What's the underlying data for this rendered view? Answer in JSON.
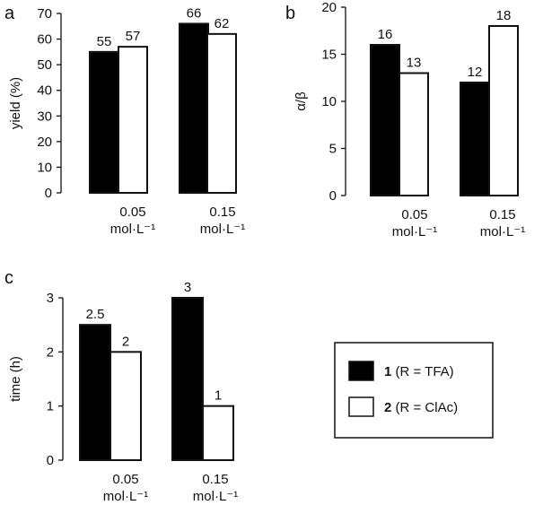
{
  "colors": {
    "series_1_fill": "#000000",
    "series_2_fill": "#ffffff",
    "axis": "#111111"
  },
  "legend": {
    "items": [
      {
        "number": "1",
        "text": " (R = TFA)",
        "swatch": "filled"
      },
      {
        "number": "2",
        "text": " (R = ClAc)",
        "swatch": "open"
      }
    ]
  },
  "chart_data": [
    {
      "panel": "a",
      "type": "bar",
      "ylabel": "yield (%)",
      "ylim": [
        0,
        70
      ],
      "yticks": [
        0,
        10,
        20,
        30,
        40,
        50,
        60,
        70
      ],
      "categories": [
        {
          "line1": "0.05",
          "line2": "mol·L⁻¹"
        },
        {
          "line1": "0.15",
          "line2": "mol·L⁻¹"
        }
      ],
      "series": [
        {
          "name": "1 (R = TFA)",
          "values": [
            55,
            66
          ],
          "labels": [
            "55",
            "66"
          ]
        },
        {
          "name": "2 (R = ClAc)",
          "values": [
            57,
            62
          ],
          "labels": [
            "57",
            "62"
          ]
        }
      ]
    },
    {
      "panel": "b",
      "type": "bar",
      "ylabel": "α/β",
      "ylim": [
        0,
        20
      ],
      "yticks": [
        0,
        5,
        10,
        15,
        20
      ],
      "categories": [
        {
          "line1": "0.05",
          "line2": "mol·L⁻¹"
        },
        {
          "line1": "0.15",
          "line2": "mol·L⁻¹"
        }
      ],
      "series": [
        {
          "name": "1 (R = TFA)",
          "values": [
            16,
            12
          ],
          "labels": [
            "16",
            "12"
          ]
        },
        {
          "name": "2 (R = ClAc)",
          "values": [
            13,
            18
          ],
          "labels": [
            "13",
            "18"
          ]
        }
      ]
    },
    {
      "panel": "c",
      "type": "bar",
      "ylabel": "time (h)",
      "ylim": [
        0,
        3
      ],
      "yticks": [
        0,
        1,
        2,
        3
      ],
      "categories": [
        {
          "line1": "0.05",
          "line2": "mol·L⁻¹"
        },
        {
          "line1": "0.15",
          "line2": "mol·L⁻¹"
        }
      ],
      "series": [
        {
          "name": "1 (R = TFA)",
          "values": [
            2.5,
            3
          ],
          "labels": [
            "2.5",
            "3"
          ]
        },
        {
          "name": "2 (R = ClAc)",
          "values": [
            2,
            1
          ],
          "labels": [
            "2",
            "1"
          ]
        }
      ]
    }
  ]
}
